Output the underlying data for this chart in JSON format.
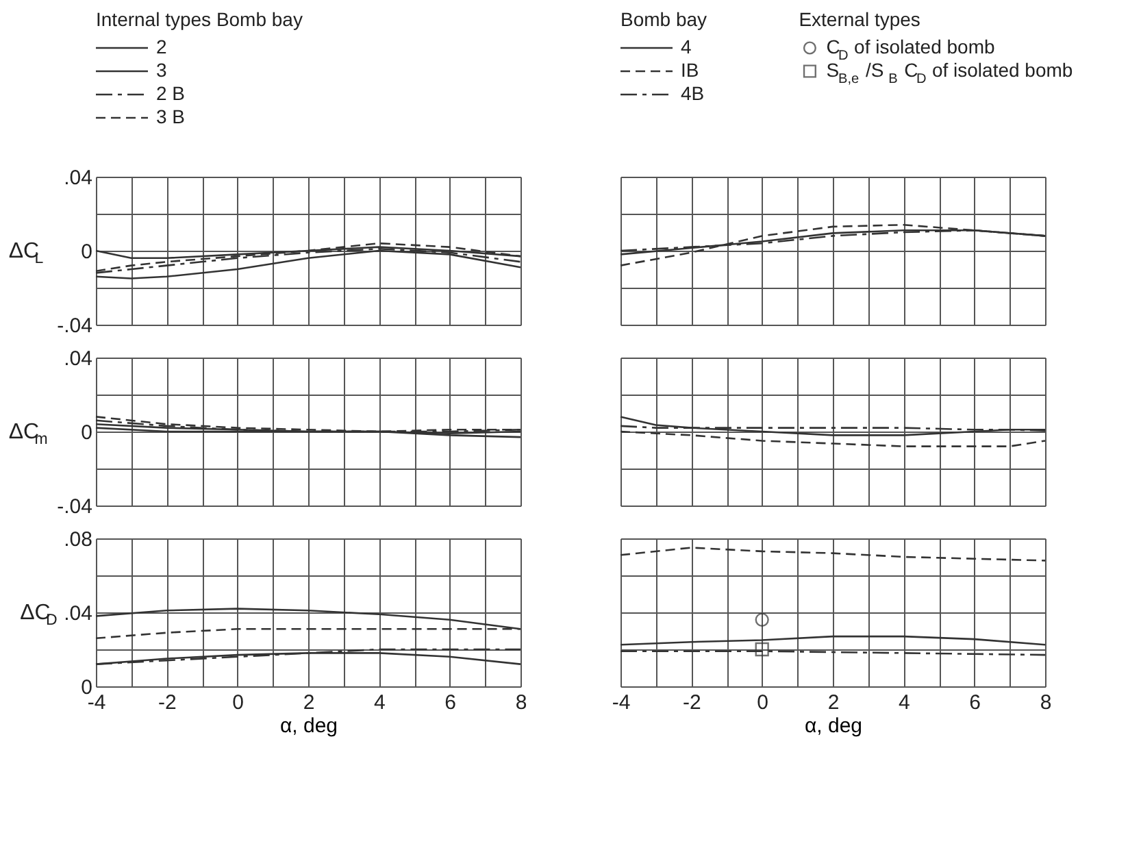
{
  "chart_data": [
    {
      "type": "line",
      "ylabel": "ΔC$_{L}$",
      "legend": "top",
      "legend_title": "Internal types Bomb bay",
      "grid": true,
      "tick_labels": "y",
      "xlim": [
        -4,
        8
      ],
      "ylim": [
        -0.04,
        0.04
      ],
      "xticks": [
        -4,
        {
          "value": -3,
          "label": null
        },
        -2,
        {
          "value": -1,
          "label": null
        },
        0,
        {
          "value": 1,
          "label": null
        },
        2,
        {
          "value": 3,
          "label": null
        },
        4,
        {
          "value": 5,
          "label": null
        },
        6,
        {
          "value": 7,
          "label": null
        },
        8
      ],
      "yticks": [
        {
          "value": -0.04,
          "label": "-.04"
        },
        {
          "value": -0.02,
          "label": null
        },
        0,
        {
          "value": 0.02,
          "label": null
        },
        {
          "value": 0.04,
          "label": ".04"
        }
      ],
      "x": [
        -4,
        -3,
        -2,
        0,
        2,
        4,
        6,
        8
      ],
      "series": [
        {
          "name": "2",
          "color": "#333333",
          "line_style": "solid",
          "values": [
            0,
            -0.004,
            -0.004,
            -0.002,
            0,
            0.002,
            0,
            -0.003
          ]
        },
        {
          "name": "3",
          "color": "#333333",
          "line_style": "solid",
          "values": [
            -0.014,
            -0.015,
            -0.014,
            -0.01,
            -0.004,
            0,
            -0.002,
            -0.009
          ]
        },
        {
          "name": "2 B",
          "color": "#333333",
          "line_style": "dashdot",
          "values": [
            -0.012,
            -0.01,
            -0.008,
            -0.004,
            -0.001,
            0.001,
            -0.001,
            -0.006
          ]
        },
        {
          "name": "3 B",
          "color": "#333333",
          "line_style": "dashed",
          "values": [
            -0.011,
            -0.008,
            -0.006,
            -0.003,
            0,
            0.004,
            0.002,
            -0.003
          ]
        }
      ]
    },
    {
      "type": "line",
      "legend": "top",
      "legend_title": "Bomb bay",
      "grid": true,
      "tick_labels": false,
      "xlim": [
        -4,
        8
      ],
      "ylim": [
        -0.04,
        0.04
      ],
      "xticks": [
        -4,
        {
          "value": -3,
          "label": null
        },
        -2,
        {
          "value": -1,
          "label": null
        },
        0,
        {
          "value": 1,
          "label": null
        },
        2,
        {
          "value": 3,
          "label": null
        },
        4,
        {
          "value": 5,
          "label": null
        },
        6,
        {
          "value": 7,
          "label": null
        },
        8
      ],
      "yticks": [
        {
          "value": -0.04,
          "label": null
        },
        {
          "value": -0.02,
          "label": null
        },
        {
          "value": 0,
          "label": null
        },
        {
          "value": 0.02,
          "label": null
        },
        {
          "value": 0.04,
          "label": null
        }
      ],
      "x": [
        -4,
        -2,
        0,
        2,
        4,
        6,
        8
      ],
      "series": [
        {
          "name": "4",
          "color": "#333333",
          "line_style": "solid",
          "values": [
            -0.002,
            0.0015,
            0.005,
            0.0095,
            0.011,
            0.011,
            0.008
          ]
        },
        {
          "name": "IB",
          "color": "#333333",
          "line_style": "dashed",
          "values": [
            -0.008,
            -0.001,
            0.008,
            0.013,
            0.014,
            0.011,
            0.008
          ]
        },
        {
          "name": "4B",
          "color": "#333333",
          "line_style": "dashdot",
          "values": [
            0.0,
            0.002,
            0.004,
            0.008,
            0.01,
            0.011,
            0.008
          ]
        }
      ]
    },
    {
      "type": "line",
      "ylabel": "ΔC$_{m}$",
      "grid": true,
      "tick_labels": "y",
      "xlim": [
        -4,
        8
      ],
      "ylim": [
        -0.04,
        0.04
      ],
      "xticks": [
        -4,
        {
          "value": -3,
          "label": null
        },
        -2,
        {
          "value": -1,
          "label": null
        },
        0,
        {
          "value": 1,
          "label": null
        },
        2,
        {
          "value": 3,
          "label": null
        },
        4,
        {
          "value": 5,
          "label": null
        },
        6,
        {
          "value": 7,
          "label": null
        },
        8
      ],
      "yticks": [
        {
          "value": -0.04,
          "label": "-.04"
        },
        {
          "value": -0.02,
          "label": null
        },
        0,
        {
          "value": 0.02,
          "label": null
        },
        {
          "value": 0.04,
          "label": ".04"
        }
      ],
      "x": [
        -4,
        -2,
        0,
        2,
        4,
        6,
        8
      ],
      "series": [
        {
          "color": "#333333",
          "line_style": "solid",
          "values": [
            0.002,
            0,
            0,
            0,
            0,
            -0.001,
            0
          ]
        },
        {
          "color": "#333333",
          "line_style": "solid",
          "values": [
            0.004,
            0.002,
            0.001,
            0,
            0,
            -0.002,
            -0.003
          ]
        },
        {
          "color": "#333333",
          "line_style": "dashdot",
          "values": [
            0.006,
            0.003,
            0.001,
            0,
            0,
            0,
            0.001
          ]
        },
        {
          "color": "#333333",
          "line_style": "dashed",
          "values": [
            0.008,
            0.004,
            0.002,
            0.001,
            0,
            0.001,
            0.001
          ]
        }
      ]
    },
    {
      "type": "line",
      "grid": true,
      "tick_labels": false,
      "xlim": [
        -4,
        8
      ],
      "ylim": [
        -0.04,
        0.04
      ],
      "xticks": [
        -4,
        {
          "value": -3,
          "label": null
        },
        -2,
        {
          "value": -1,
          "label": null
        },
        0,
        {
          "value": 1,
          "label": null
        },
        2,
        {
          "value": 3,
          "label": null
        },
        4,
        {
          "value": 5,
          "label": null
        },
        6,
        {
          "value": 7,
          "label": null
        },
        8
      ],
      "yticks": [
        {
          "value": -0.04,
          "label": null
        },
        {
          "value": -0.02,
          "label": null
        },
        {
          "value": 0,
          "label": null
        },
        {
          "value": 0.02,
          "label": null
        },
        {
          "value": 0.04,
          "label": null
        }
      ],
      "x": [
        -4,
        -3,
        -2,
        0,
        2,
        4,
        6,
        7,
        8
      ],
      "series": [
        {
          "color": "#333333",
          "line_style": "solid",
          "values": [
            0.008,
            0.0035,
            0.002,
            0,
            -0.002,
            -0.002,
            0,
            0.001,
            0.001
          ]
        },
        {
          "color": "#333333",
          "line_style": "dashed",
          "values": [
            0,
            -0.001,
            -0.002,
            -0.005,
            -0.0065,
            -0.008,
            -0.008,
            -0.008,
            -0.005
          ]
        },
        {
          "color": "#333333",
          "line_style": "dashdot",
          "values": [
            0.003,
            0.002,
            0.002,
            0.002,
            0.002,
            0.002,
            0.001,
            0.001,
            0.0005
          ]
        }
      ]
    },
    {
      "type": "line",
      "ylabel": "ΔC$_{D}$",
      "xlabel": "α, deg",
      "grid": true,
      "xlim": [
        -4,
        8
      ],
      "ylim": [
        0,
        0.08
      ],
      "xticks": [
        -4,
        {
          "value": -3,
          "label": null
        },
        -2,
        {
          "value": -1,
          "label": null
        },
        0,
        {
          "value": 1,
          "label": null
        },
        2,
        {
          "value": 3,
          "label": null
        },
        4,
        {
          "value": 5,
          "label": null
        },
        6,
        {
          "value": 7,
          "label": null
        },
        8
      ],
      "yticks": [
        0,
        {
          "value": 0.02,
          "label": null
        },
        {
          "value": 0.04,
          "label": ".04"
        },
        {
          "value": 0.06,
          "label": null
        },
        {
          "value": 0.08,
          "label": ".08"
        }
      ],
      "x": [
        -4,
        -2,
        0,
        2,
        4,
        6,
        8
      ],
      "series": [
        {
          "color": "#333333",
          "line_style": "solid",
          "values": [
            0.038,
            0.041,
            0.042,
            0.041,
            0.039,
            0.036,
            0.031
          ]
        },
        {
          "color": "#333333",
          "line_style": "solid",
          "values": [
            0.012,
            0.015,
            0.017,
            0.018,
            0.018,
            0.016,
            0.012
          ]
        },
        {
          "color": "#333333",
          "line_style": "dashdot",
          "values": [
            0.012,
            0.014,
            0.016,
            0.018,
            0.02,
            0.02,
            0.02
          ]
        },
        {
          "color": "#333333",
          "line_style": "dashed",
          "values": [
            0.026,
            0.029,
            0.031,
            0.031,
            0.031,
            0.031,
            0.031
          ]
        }
      ]
    },
    {
      "type": "line",
      "xlabel": "α, deg",
      "legend": "top",
      "legend_title": "External types",
      "grid": true,
      "tick_labels": "x",
      "xlim": [
        -4,
        8
      ],
      "ylim": [
        0,
        0.08
      ],
      "xticks": [
        -4,
        {
          "value": -3,
          "label": null
        },
        -2,
        {
          "value": -1,
          "label": null
        },
        0,
        {
          "value": 1,
          "label": null
        },
        2,
        {
          "value": 3,
          "label": null
        },
        4,
        {
          "value": 5,
          "label": null
        },
        6,
        {
          "value": 7,
          "label": null
        },
        8
      ],
      "yticks": [
        {
          "value": 0,
          "label": null
        },
        {
          "value": 0.02,
          "label": null
        },
        {
          "value": 0.04,
          "label": null
        },
        {
          "value": 0.06,
          "label": null
        },
        {
          "value": 0.08,
          "label": null
        }
      ],
      "x": [
        -4,
        -2,
        0,
        2,
        4,
        6,
        8
      ],
      "series": [
        {
          "color": "#333333",
          "line_style": "solid",
          "values": [
            0.0225,
            0.024,
            0.025,
            0.027,
            0.027,
            0.0255,
            0.0225
          ]
        },
        {
          "color": "#333333",
          "line_style": "dashed",
          "values": [
            0.071,
            0.075,
            0.073,
            0.072,
            0.07,
            0.069,
            0.068
          ]
        },
        {
          "color": "#333333",
          "line_style": "dashdot",
          "values": [
            0.019,
            0.019,
            0.019,
            0.0185,
            0.018,
            0.0175,
            0.017
          ]
        },
        {
          "name": "C$_{D}$ of isolated bomb",
          "type": "scatter",
          "marker": "circle",
          "color": "#333333",
          "x": [
            0
          ],
          "values": [
            0.036
          ]
        },
        {
          "name": "S$_{B,e}$/S$_{B}$ C$_{D}$ of isolated bomb",
          "type": "scatter",
          "marker": "square",
          "color": "#333333",
          "x": [
            0
          ],
          "values": [
            0.02
          ]
        }
      ]
    }
  ]
}
